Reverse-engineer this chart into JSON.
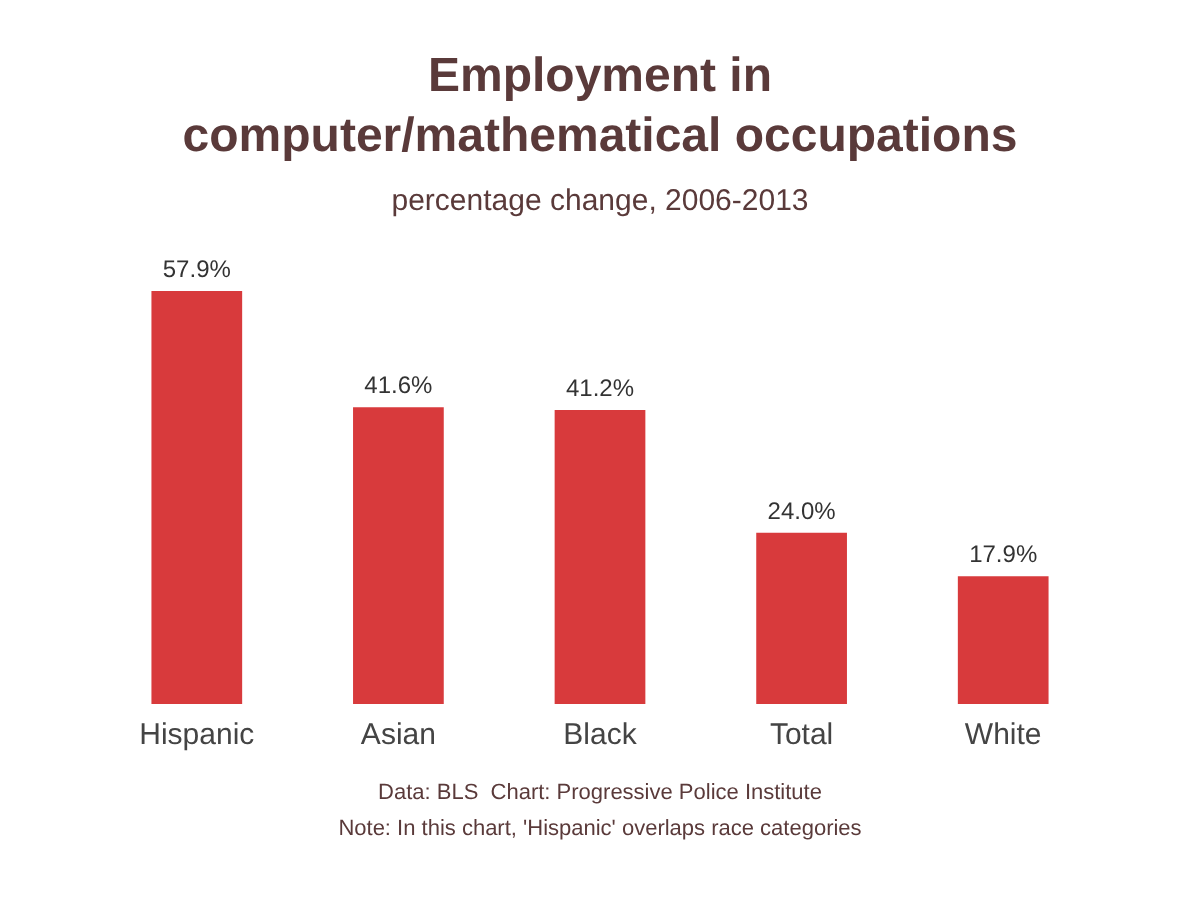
{
  "chart_data": {
    "type": "bar",
    "title": "Employment in\ncomputer/mathematical occupations",
    "subtitle": "percentage change, 2006-2013",
    "categories": [
      "Hispanic",
      "Asian",
      "Black",
      "Total",
      "White"
    ],
    "values": [
      57.9,
      41.6,
      41.2,
      24.0,
      17.9
    ],
    "value_labels": [
      "57.9%",
      "41.6%",
      "41.2%",
      "24.0%",
      "17.9%"
    ],
    "color": "#d83a3c",
    "annotations": [
      "Data: BLS  Chart: Progressive Police Institute",
      "Note: In this chart, 'Hispanic' overlaps race categories"
    ]
  }
}
